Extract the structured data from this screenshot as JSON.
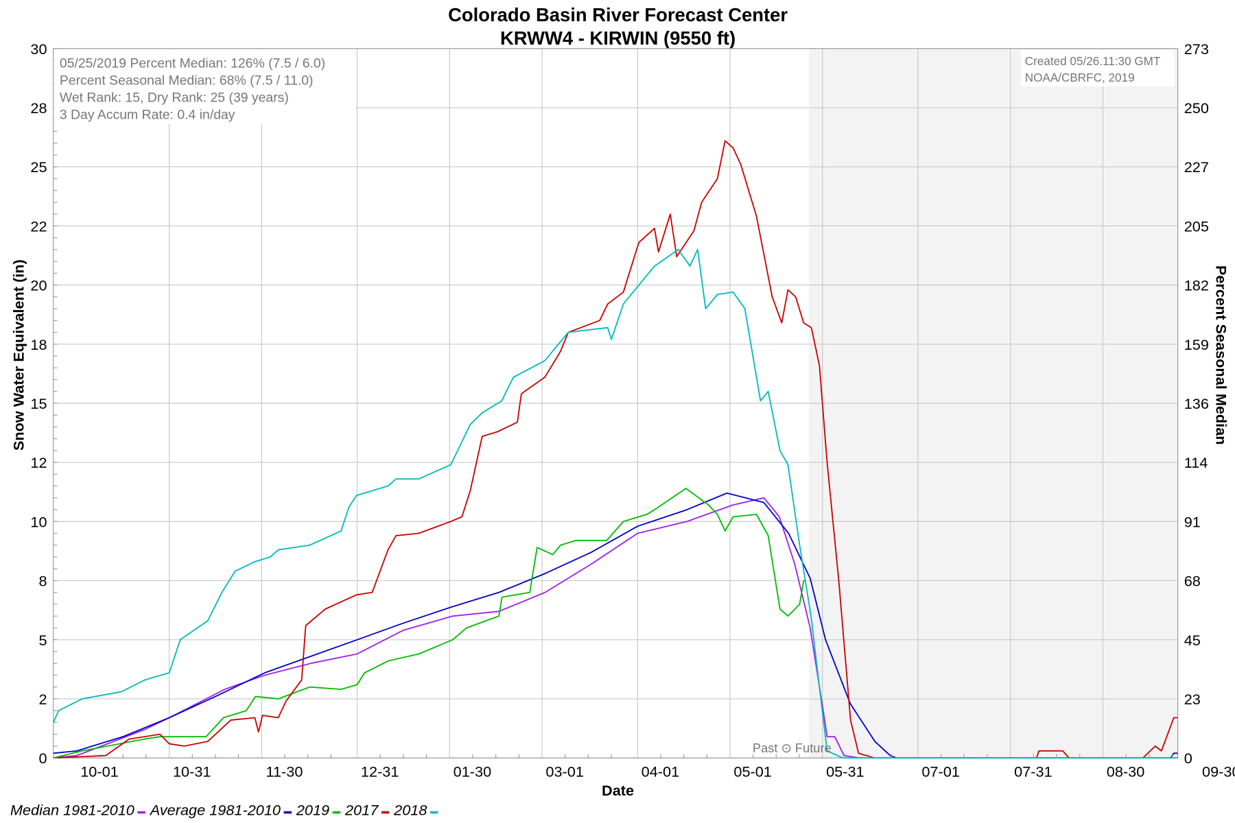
{
  "chart_data": {
    "type": "line",
    "title": "Colorado Basin River Forecast Center",
    "subtitle": "KRWW4 - KIRWIN (9550 ft)",
    "xlabel": "Date",
    "ylabel": "Snow Water Equivalent (in)",
    "y2label": "Percent Seasonal Median",
    "ylim": [
      0,
      30
    ],
    "y2lim": [
      0,
      273
    ],
    "xlim_days_from_oct1": [
      -7.6,
      357.3
    ],
    "grid": true,
    "legend_position": "bottom-left",
    "x_ticks": [
      {
        "label": "10-01",
        "day": 0
      },
      {
        "label": "10-31",
        "day": 30
      },
      {
        "label": "11-30",
        "day": 60
      },
      {
        "label": "12-31",
        "day": 91
      },
      {
        "label": "01-30",
        "day": 121
      },
      {
        "label": "03-01",
        "day": 151
      },
      {
        "label": "04-01",
        "day": 182
      },
      {
        "label": "05-01",
        "day": 212
      },
      {
        "label": "05-31",
        "day": 242
      },
      {
        "label": "07-01",
        "day": 273
      },
      {
        "label": "07-31",
        "day": 303
      },
      {
        "label": "08-30",
        "day": 333
      },
      {
        "label": "09-30",
        "day": 364
      }
    ],
    "y_ticks": [
      {
        "label": "0",
        "value": 0
      },
      {
        "label": "2",
        "value": 2.5
      },
      {
        "label": "5",
        "value": 5
      },
      {
        "label": "8",
        "value": 7.5
      },
      {
        "label": "10",
        "value": 10
      },
      {
        "label": "12",
        "value": 12.5
      },
      {
        "label": "15",
        "value": 15
      },
      {
        "label": "18",
        "value": 17.5
      },
      {
        "label": "20",
        "value": 20
      },
      {
        "label": "22",
        "value": 22.5
      },
      {
        "label": "25",
        "value": 25
      },
      {
        "label": "28",
        "value": 27.5
      },
      {
        "label": "30",
        "value": 30
      }
    ],
    "y2_ticks": [
      "0",
      "23",
      "45",
      "68",
      "91",
      "114",
      "136",
      "159",
      "182",
      "205",
      "227",
      "250",
      "273"
    ],
    "forecast_start_day": 237.6,
    "past_future_label": "Past ⊙ Future",
    "info_box": [
      "05/25/2019 Percent Median: 126% (7.5 / 6.0)",
      "Percent Seasonal Median: 68% (7.5 / 11.0)",
      "Wet Rank: 15, Dry Rank: 25  (39 years)",
      "3 Day Accum Rate: 0.4 in/day"
    ],
    "credit_box": [
      "Created 05/26.11:30 GMT",
      "NOAA/CBRFC, 2019"
    ],
    "series": [
      {
        "name": "Median 1981-2010",
        "color": "#a020f0",
        "points": [
          [
            -7.6,
            0
          ],
          [
            0,
            0.1
          ],
          [
            22,
            1.2
          ],
          [
            30,
            1.7
          ],
          [
            48,
            2.9
          ],
          [
            61,
            3.5
          ],
          [
            76,
            4.0
          ],
          [
            91,
            4.4
          ],
          [
            106,
            5.4
          ],
          [
            122,
            6.0
          ],
          [
            137,
            6.2
          ],
          [
            152,
            7.0
          ],
          [
            167,
            8.2
          ],
          [
            182,
            9.5
          ],
          [
            198,
            10.0
          ],
          [
            213,
            10.7
          ],
          [
            223,
            11.0
          ],
          [
            228,
            10.2
          ],
          [
            233,
            8.2
          ],
          [
            238,
            5.5
          ],
          [
            242,
            2.2
          ],
          [
            243.5,
            0.9
          ],
          [
            246,
            0.9
          ],
          [
            249,
            0.1
          ],
          [
            254,
            0
          ],
          [
            357.3,
            0
          ]
        ]
      },
      {
        "name": "Average 1981-2010",
        "color": "#0000cc",
        "points": [
          [
            -7.6,
            0.2
          ],
          [
            0,
            0.3
          ],
          [
            15,
            0.9
          ],
          [
            30,
            1.7
          ],
          [
            45,
            2.6
          ],
          [
            61,
            3.6
          ],
          [
            76,
            4.3
          ],
          [
            91,
            5.0
          ],
          [
            106,
            5.7
          ],
          [
            122,
            6.4
          ],
          [
            137,
            7.0
          ],
          [
            152,
            7.8
          ],
          [
            167,
            8.7
          ],
          [
            182,
            9.8
          ],
          [
            198,
            10.5
          ],
          [
            211,
            11.2
          ],
          [
            223,
            10.8
          ],
          [
            231,
            9.5
          ],
          [
            238,
            7.6
          ],
          [
            243,
            5.0
          ],
          [
            251,
            2.3
          ],
          [
            259,
            0.7
          ],
          [
            264,
            0.1
          ],
          [
            266,
            0
          ],
          [
            355,
            0
          ],
          [
            356,
            0.2
          ],
          [
            357.3,
            0.2
          ]
        ]
      },
      {
        "name": "2019",
        "color": "#00bb00",
        "points": [
          [
            -7.6,
            0
          ],
          [
            1.8,
            0.3
          ],
          [
            22,
            0.8
          ],
          [
            27,
            0.9
          ],
          [
            30,
            0.9
          ],
          [
            42,
            0.9
          ],
          [
            47.6,
            1.7
          ],
          [
            55,
            2.0
          ],
          [
            58,
            2.6
          ],
          [
            65.4,
            2.5
          ],
          [
            75.6,
            3.0
          ],
          [
            85.8,
            2.9
          ],
          [
            91,
            3.1
          ],
          [
            93.4,
            3.6
          ],
          [
            101,
            4.1
          ],
          [
            111,
            4.4
          ],
          [
            122,
            5.0
          ],
          [
            126.5,
            5.5
          ],
          [
            137,
            6.0
          ],
          [
            138,
            6.8
          ],
          [
            147,
            7.0
          ],
          [
            149.4,
            8.9
          ],
          [
            154.5,
            8.6
          ],
          [
            157,
            9.0
          ],
          [
            162,
            9.2
          ],
          [
            172,
            9.2
          ],
          [
            177.4,
            10.0
          ],
          [
            185,
            10.3
          ],
          [
            187.5,
            10.5
          ],
          [
            197.7,
            11.4
          ],
          [
            205,
            10.7
          ],
          [
            207.9,
            10.3
          ],
          [
            210.4,
            9.6
          ],
          [
            213,
            10.2
          ],
          [
            220.6,
            10.3
          ],
          [
            224.4,
            9.4
          ],
          [
            228.2,
            6.3
          ],
          [
            230.8,
            6.0
          ],
          [
            234.6,
            6.5
          ],
          [
            235.9,
            7.5
          ],
          [
            236.6,
            7.5
          ]
        ]
      },
      {
        "name": "2017",
        "color": "#cc0000",
        "points": [
          [
            -7.6,
            0
          ],
          [
            9.4,
            0.1
          ],
          [
            17,
            0.8
          ],
          [
            27,
            1.0
          ],
          [
            30,
            0.6
          ],
          [
            34.9,
            0.5
          ],
          [
            42.5,
            0.7
          ],
          [
            50,
            1.6
          ],
          [
            57.8,
            1.7
          ],
          [
            59,
            1.1
          ],
          [
            60.3,
            1.8
          ],
          [
            65.4,
            1.7
          ],
          [
            67.9,
            2.4
          ],
          [
            73,
            3.3
          ],
          [
            74.3,
            5.6
          ],
          [
            80.7,
            6.3
          ],
          [
            90.8,
            6.9
          ],
          [
            95.9,
            7.0
          ],
          [
            101,
            8.8
          ],
          [
            103.6,
            9.4
          ],
          [
            111,
            9.5
          ],
          [
            121.4,
            10.0
          ],
          [
            125,
            10.2
          ],
          [
            127.7,
            11.3
          ],
          [
            131.6,
            13.6
          ],
          [
            136.6,
            13.8
          ],
          [
            143,
            14.2
          ],
          [
            144.3,
            15.4
          ],
          [
            151.9,
            16.1
          ],
          [
            157,
            17.2
          ],
          [
            159.5,
            18.0
          ],
          [
            169.7,
            18.5
          ],
          [
            172.3,
            19.2
          ],
          [
            177.4,
            19.7
          ],
          [
            182.4,
            21.8
          ],
          [
            187.5,
            22.4
          ],
          [
            188.8,
            21.4
          ],
          [
            192.6,
            23.0
          ],
          [
            194.7,
            21.2
          ],
          [
            200.3,
            22.3
          ],
          [
            202.8,
            23.5
          ],
          [
            207.9,
            24.5
          ],
          [
            210.4,
            26.1
          ],
          [
            213,
            25.8
          ],
          [
            215.5,
            25.1
          ],
          [
            220.6,
            22.9
          ],
          [
            225.7,
            19.5
          ],
          [
            228.8,
            18.4
          ],
          [
            230.8,
            19.8
          ],
          [
            233.3,
            19.5
          ],
          [
            235.9,
            18.4
          ],
          [
            238.4,
            18.2
          ],
          [
            241,
            16.6
          ],
          [
            243.5,
            12.5
          ],
          [
            247.3,
            7.5
          ],
          [
            251.1,
            1.6
          ],
          [
            253.7,
            0.2
          ],
          [
            258.8,
            0
          ],
          [
            311.5,
            0
          ],
          [
            312.2,
            0.3
          ],
          [
            320,
            0.3
          ],
          [
            322,
            0
          ],
          [
            346,
            0
          ],
          [
            350,
            0.5
          ],
          [
            352,
            0.3
          ],
          [
            356,
            1.7
          ],
          [
            357.3,
            1.7
          ]
        ]
      },
      {
        "name": "2018",
        "color": "#00bbbb",
        "points": [
          [
            -7.6,
            1.5
          ],
          [
            -5.9,
            2.0
          ],
          [
            1.8,
            2.5
          ],
          [
            14.5,
            2.8
          ],
          [
            22.1,
            3.3
          ],
          [
            30,
            3.6
          ],
          [
            33.6,
            5.0
          ],
          [
            42.5,
            5.8
          ],
          [
            47.1,
            7.0
          ],
          [
            51.4,
            7.9
          ],
          [
            57.8,
            8.3
          ],
          [
            62.8,
            8.5
          ],
          [
            65.4,
            8.8
          ],
          [
            75.6,
            9.0
          ],
          [
            85.8,
            9.6
          ],
          [
            88.3,
            10.6
          ],
          [
            90.8,
            11.1
          ],
          [
            101,
            11.5
          ],
          [
            103.6,
            11.8
          ],
          [
            111,
            11.8
          ],
          [
            121.4,
            12.4
          ],
          [
            127.7,
            14.1
          ],
          [
            131.6,
            14.6
          ],
          [
            137.9,
            15.1
          ],
          [
            141.7,
            16.1
          ],
          [
            151.9,
            16.8
          ],
          [
            159.5,
            18.0
          ],
          [
            172.3,
            18.2
          ],
          [
            173.5,
            17.7
          ],
          [
            177.4,
            19.2
          ],
          [
            182.4,
            20.0
          ],
          [
            187.5,
            20.8
          ],
          [
            195.2,
            21.5
          ],
          [
            199,
            20.8
          ],
          [
            201.5,
            21.5
          ],
          [
            204.1,
            19.0
          ],
          [
            207.9,
            19.6
          ],
          [
            213,
            19.7
          ],
          [
            216.8,
            19.0
          ],
          [
            221.9,
            15.1
          ],
          [
            224.4,
            15.5
          ],
          [
            228.2,
            13.0
          ],
          [
            230.8,
            12.4
          ],
          [
            234.6,
            9.0
          ],
          [
            238.4,
            5.9
          ],
          [
            241,
            3.0
          ],
          [
            243.5,
            0.3
          ],
          [
            248.6,
            0
          ],
          [
            357.3,
            0
          ]
        ]
      }
    ]
  }
}
